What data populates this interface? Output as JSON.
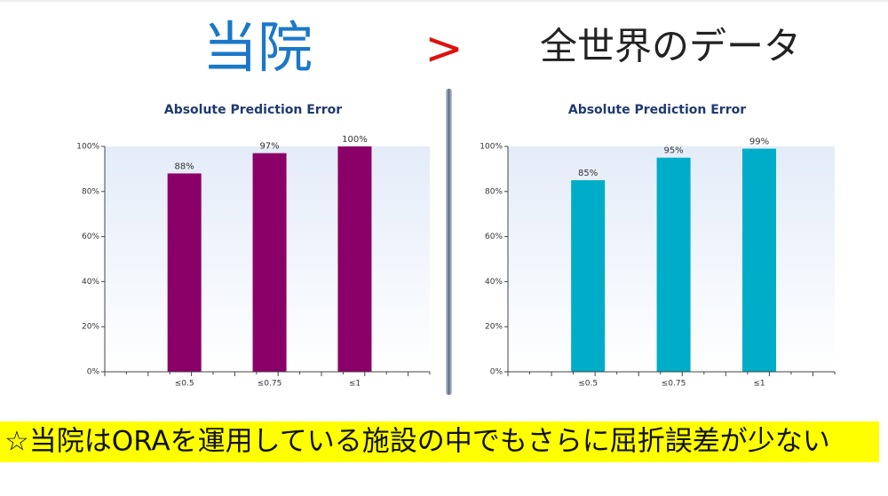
{
  "header": {
    "left": "当院",
    "symbol": ">",
    "right": "全世界のデータ"
  },
  "chart_data": [
    {
      "type": "bar",
      "title": "Absolute Prediction Error",
      "categories": [
        "≤0.5",
        "≤0.75",
        "≤1"
      ],
      "values": [
        88,
        97,
        100
      ],
      "value_labels": [
        "88%",
        "97%",
        "100%"
      ],
      "color": "#8b0068",
      "ylim": [
        0,
        100
      ],
      "yticks": [
        {
          "value": 0,
          "label": "0%"
        },
        {
          "value": 20,
          "label": "20%"
        },
        {
          "value": 40,
          "label": "40%"
        },
        {
          "value": 60,
          "label": "60%"
        },
        {
          "value": 80,
          "label": "80%"
        },
        {
          "value": 100,
          "label": "100%"
        }
      ]
    },
    {
      "type": "bar",
      "title": "Absolute Prediction Error",
      "categories": [
        "≤0.5",
        "≤0.75",
        "≤1"
      ],
      "values": [
        85,
        95,
        99
      ],
      "value_labels": [
        "85%",
        "95%",
        "99%"
      ],
      "color": "#00adc8",
      "ylim": [
        0,
        100
      ],
      "yticks": [
        {
          "value": 0,
          "label": "0%"
        },
        {
          "value": 20,
          "label": "20%"
        },
        {
          "value": 40,
          "label": "40%"
        },
        {
          "value": 60,
          "label": "60%"
        },
        {
          "value": 80,
          "label": "80%"
        },
        {
          "value": 100,
          "label": "100%"
        }
      ]
    }
  ],
  "footer": "☆当院はORAを運用している施設の中でもさらに屈折誤差が少ない"
}
